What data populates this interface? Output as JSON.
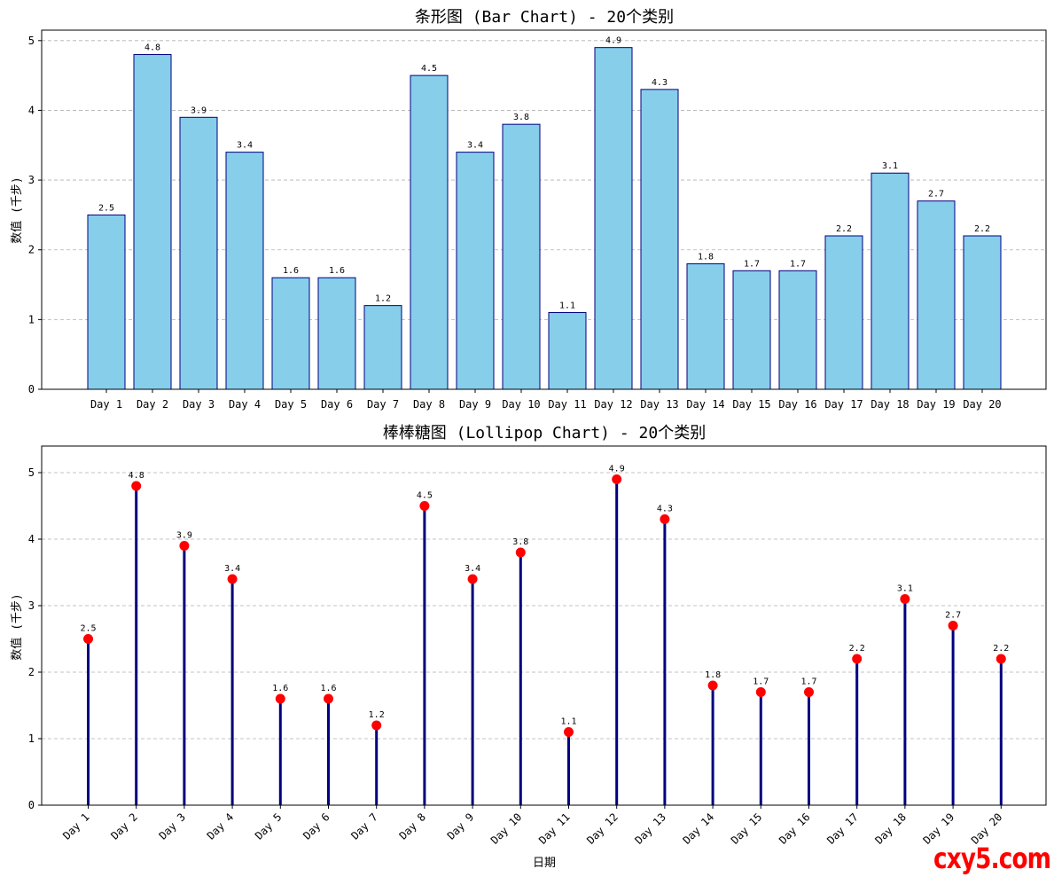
{
  "watermark": "cxy5.com",
  "chart_data": [
    {
      "type": "bar",
      "title": "条形图 (Bar Chart) - 20个类别",
      "xlabel": "",
      "ylabel": "数值 (千步)",
      "categories": [
        "Day 1",
        "Day 2",
        "Day 3",
        "Day 4",
        "Day 5",
        "Day 6",
        "Day 7",
        "Day 8",
        "Day 9",
        "Day 10",
        "Day 11",
        "Day 12",
        "Day 13",
        "Day 14",
        "Day 15",
        "Day 16",
        "Day 17",
        "Day 18",
        "Day 19",
        "Day 20"
      ],
      "values": [
        2.5,
        4.8,
        3.9,
        3.4,
        1.6,
        1.6,
        1.2,
        4.5,
        3.4,
        3.8,
        1.1,
        4.9,
        4.3,
        1.8,
        1.7,
        1.7,
        2.2,
        3.1,
        2.7,
        2.2
      ],
      "ylim": [
        0,
        5.15
      ],
      "yticks": [
        0,
        1,
        2,
        3,
        4,
        5
      ],
      "grid": "y-dashed",
      "colors": {
        "fill": "#87ceeb",
        "edge": "#000080"
      }
    },
    {
      "type": "lollipop",
      "title": "棒棒糖图 (Lollipop Chart) - 20个类别",
      "xlabel": "日期",
      "ylabel": "数值 (千步)",
      "categories": [
        "Day 1",
        "Day 2",
        "Day 3",
        "Day 4",
        "Day 5",
        "Day 6",
        "Day 7",
        "Day 8",
        "Day 9",
        "Day 10",
        "Day 11",
        "Day 12",
        "Day 13",
        "Day 14",
        "Day 15",
        "Day 16",
        "Day 17",
        "Day 18",
        "Day 19",
        "Day 20"
      ],
      "values": [
        2.5,
        4.8,
        3.9,
        3.4,
        1.6,
        1.6,
        1.2,
        4.5,
        3.4,
        3.8,
        1.1,
        4.9,
        4.3,
        1.8,
        1.7,
        1.7,
        2.2,
        3.1,
        2.7,
        2.2
      ],
      "ylim": [
        0,
        5.4
      ],
      "yticks": [
        0,
        1,
        2,
        3,
        4,
        5
      ],
      "grid": "y-dashed",
      "xtick_rotation": 45,
      "colors": {
        "stem": "#000080",
        "marker": "#ff0000"
      }
    }
  ]
}
